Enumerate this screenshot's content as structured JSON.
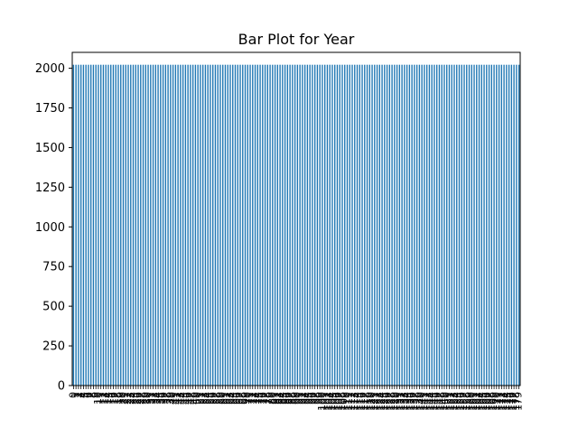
{
  "chart_data": {
    "type": "bar",
    "title": "Bar Plot for Year",
    "xlabel": "",
    "ylabel": "",
    "ylim": [
      0,
      2100
    ],
    "yticks": [
      0,
      250,
      500,
      750,
      1000,
      1250,
      1500,
      1750,
      2000
    ],
    "grid": false,
    "legend": "none",
    "bar_color": "#1f77b4",
    "categories_count": 180,
    "categories_note": "Category labels are sequential index integers 0..179 drawn rotated 90°; they overlap illegibly in the original.",
    "values_note": "Every bar has the same value.",
    "bar_value": 2022
  }
}
